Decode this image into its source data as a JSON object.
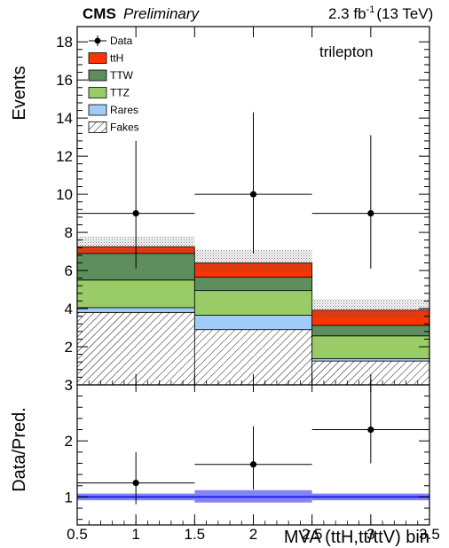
{
  "header": {
    "experiment": "CMS",
    "status": "Preliminary",
    "lumi_value": "2.3 fb",
    "lumi_exp": "-1",
    "energy": "(13 TeV)"
  },
  "channel_label": "trilepton",
  "chart_data": [
    {
      "type": "bar",
      "subtype": "stacked-histogram",
      "xlabel": "MVA (ttH,tt/ttV) bin",
      "ylabel": "Events",
      "xlim": [
        0.5,
        3.5
      ],
      "ylim": [
        0,
        18.8
      ],
      "x_ticks": [
        0.5,
        1,
        1.5,
        2,
        2.5,
        3,
        3.5
      ],
      "x_tick_labels": [
        "0.5",
        "1",
        "1.5",
        "2",
        "2.5",
        "3",
        "3.5"
      ],
      "y_ticks": [
        2,
        4,
        6,
        8,
        10,
        12,
        14,
        16,
        18
      ],
      "y_tick_labels": [
        "2",
        "4",
        "6",
        "8",
        "10",
        "12",
        "14",
        "16",
        "18"
      ],
      "bin_edges": [
        0.5,
        1.5,
        2.5,
        3.5
      ],
      "stack_order": [
        "Fakes",
        "Rares",
        "TTZ",
        "TTW",
        "ttH"
      ],
      "series": [
        {
          "name": "Fakes",
          "values": [
            3.8,
            2.9,
            1.25
          ],
          "color": "#ffffff",
          "pattern": "hatch"
        },
        {
          "name": "Rares",
          "values": [
            0.25,
            0.75,
            0.12
          ],
          "color": "#a0cdf7"
        },
        {
          "name": "TTZ",
          "values": [
            1.45,
            1.3,
            1.2
          ],
          "color": "#99cc66"
        },
        {
          "name": "TTW",
          "values": [
            1.4,
            0.7,
            0.55
          ],
          "color": "#5e8e5e"
        },
        {
          "name": "ttH",
          "values": [
            0.35,
            0.75,
            0.8
          ],
          "color": "#ff3300"
        }
      ],
      "uncertainty_band": {
        "low": [
          6.8,
          5.9,
          3.5
        ],
        "high": [
          7.8,
          7.1,
          4.5
        ]
      },
      "data_points": {
        "name": "Data",
        "x": [
          1,
          2,
          3
        ],
        "y": [
          9,
          10,
          9
        ],
        "err_low": [
          2.9,
          3.1,
          2.9
        ],
        "err_high": [
          3.8,
          4.3,
          4.1
        ]
      },
      "legend": {
        "placement": "top-left",
        "entries": [
          "Data",
          "ttH",
          "TTW",
          "TTZ",
          "Rares",
          "Fakes"
        ]
      }
    },
    {
      "type": "scatter",
      "subtype": "ratio",
      "xlabel": "MVA (ttH,tt/ttV) bin",
      "ylabel": "Data/Pred.",
      "xlim": [
        0.5,
        3.5
      ],
      "ylim": [
        0.5,
        3
      ],
      "y_ticks": [
        1,
        2,
        3
      ],
      "y_tick_labels": [
        "1",
        "2",
        "3"
      ],
      "x": [
        1,
        2,
        3
      ],
      "y": [
        1.25,
        1.58,
        2.2
      ],
      "err_low": [
        0.38,
        0.45,
        0.6
      ],
      "err_high": [
        0.55,
        0.68,
        0.9
      ],
      "reference_line": 1,
      "band": {
        "low": [
          0.94,
          0.9,
          0.94
        ],
        "high": [
          1.06,
          1.12,
          1.06
        ],
        "color": "#6f6ff7"
      }
    }
  ]
}
